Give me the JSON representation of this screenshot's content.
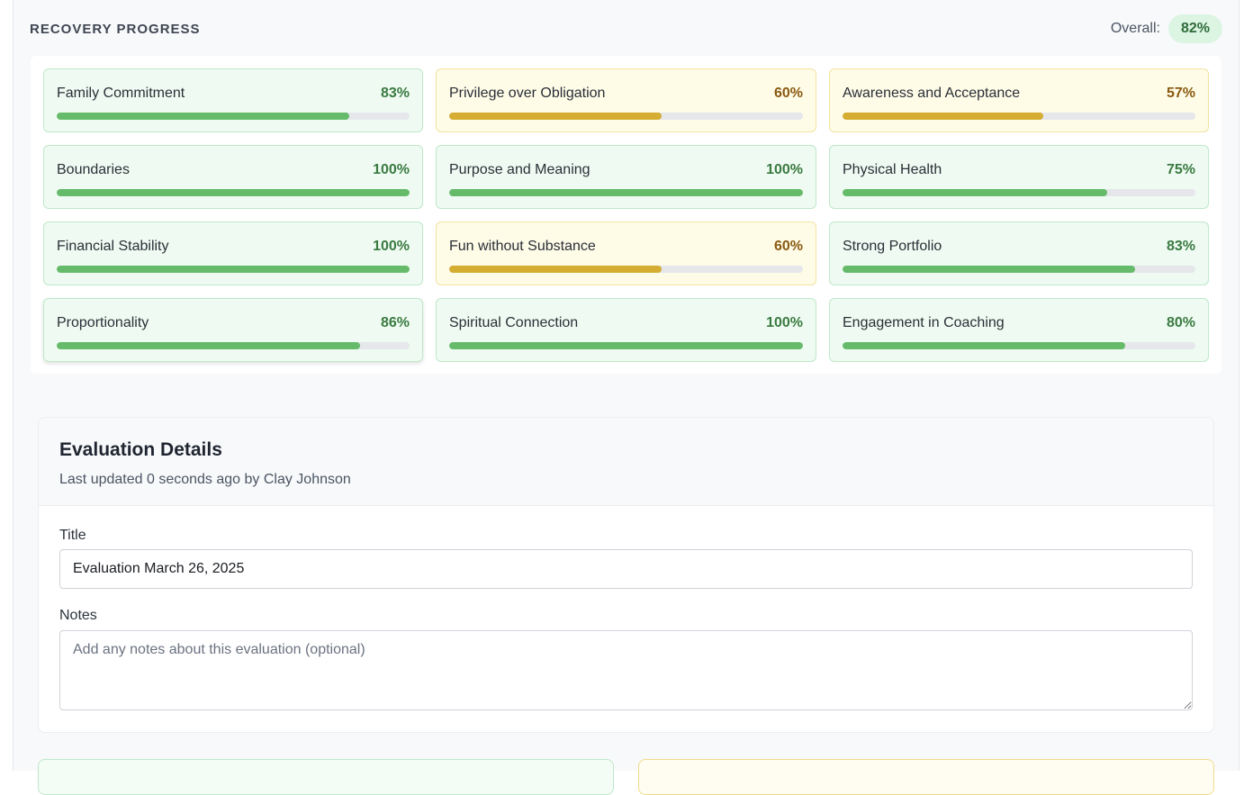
{
  "progress": {
    "title": "RECOVERY PROGRESS",
    "overall_label": "Overall:",
    "overall_value": "82%"
  },
  "categories": [
    {
      "name": "Family Commitment",
      "percent": "83%",
      "value": 83,
      "status": "good"
    },
    {
      "name": "Privilege over Obligation",
      "percent": "60%",
      "value": 60,
      "status": "warn"
    },
    {
      "name": "Awareness and Acceptance",
      "percent": "57%",
      "value": 57,
      "status": "warn"
    },
    {
      "name": "Boundaries",
      "percent": "100%",
      "value": 100,
      "status": "good"
    },
    {
      "name": "Purpose and Meaning",
      "percent": "100%",
      "value": 100,
      "status": "good"
    },
    {
      "name": "Physical Health",
      "percent": "75%",
      "value": 75,
      "status": "good"
    },
    {
      "name": "Financial Stability",
      "percent": "100%",
      "value": 100,
      "status": "good"
    },
    {
      "name": "Fun without Substance",
      "percent": "60%",
      "value": 60,
      "status": "warn"
    },
    {
      "name": "Strong Portfolio",
      "percent": "83%",
      "value": 83,
      "status": "good"
    },
    {
      "name": "Proportionality",
      "percent": "86%",
      "value": 86,
      "status": "good"
    },
    {
      "name": "Spiritual Connection",
      "percent": "100%",
      "value": 100,
      "status": "good"
    },
    {
      "name": "Engagement in Coaching",
      "percent": "80%",
      "value": 80,
      "status": "good"
    }
  ],
  "evaluation": {
    "heading": "Evaluation Details",
    "updated": "Last updated 0 seconds ago by Clay Johnson",
    "title_label": "Title",
    "title_value": "Evaluation March 26, 2025",
    "notes_label": "Notes",
    "notes_placeholder": "Add any notes about this evaluation (optional)"
  },
  "colors": {
    "good": "#66bb6a",
    "warn": "#d4ad32",
    "good_text": "#3a7a41",
    "warn_text": "#8a5a12"
  }
}
